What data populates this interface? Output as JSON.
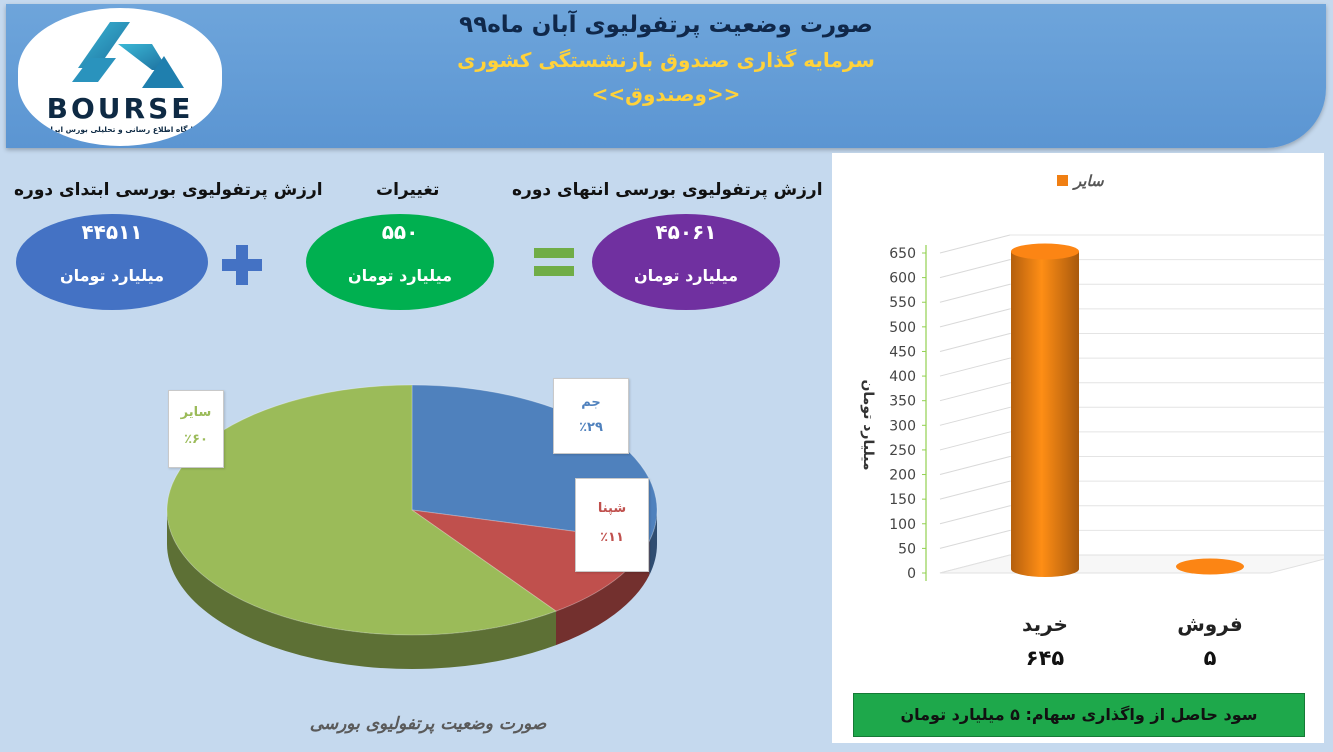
{
  "header": {
    "title": "صورت وضعیت پرتفولیوی آبان ماه۹۹",
    "subtitle": "سرمایه گذاری صندوق بازنشستگی کشوری",
    "fund": "<<وصندوق>>",
    "logo_text": "BOURSE",
    "logo_tagline": "پایگاه اطلاع رسانی و تحلیلی بورس ایران"
  },
  "equation": {
    "start": {
      "label": "ارزش پرتفولیوی بورسی ابتدای دوره",
      "value": "۴۴۵۱۱",
      "unit": "میلیارد تومان",
      "color": "#4472c4"
    },
    "change": {
      "label": "تغییرات",
      "value": "۵۵۰",
      "unit": "میلیارد تومان",
      "color": "#00b050"
    },
    "end": {
      "label": "ارزش پرتفولیوی بورسی انتهای دوره",
      "value": "۴۵۰۶۱",
      "unit": "میلیارد تومان",
      "color": "#7030a0"
    },
    "plus_color": "#4472c4",
    "equals_color": "#70ad47"
  },
  "pie": {
    "caption": "صورت وضعیت پرتفولیوی بورسی"
  },
  "profit_note": "سود حاصل از واگذاری سهام: ۵ میلیارد تومان",
  "chart_data": [
    {
      "type": "pie",
      "labels": [
        "جم",
        "شپنا",
        "سایر"
      ],
      "values": [
        29,
        11,
        60
      ],
      "value_labels": [
        "٪۲۹",
        "٪۱۱",
        "٪۶۰"
      ],
      "colors": [
        "#4f81bd",
        "#c0504d",
        "#9bbb59"
      ]
    },
    {
      "type": "bar",
      "categories": [
        "خرید",
        "فروش"
      ],
      "series": [
        {
          "name": "سایر",
          "values": [
            645,
            5
          ],
          "color": "#f07f13"
        }
      ],
      "value_labels": [
        "۶۴۵",
        "۵"
      ],
      "ylabel": "میلیارد تومان",
      "ylim": [
        0,
        650
      ],
      "yticks": [
        0,
        50,
        100,
        150,
        200,
        250,
        300,
        350,
        400,
        450,
        500,
        550,
        600,
        650
      ],
      "legend": "top-right",
      "grid": true
    }
  ]
}
